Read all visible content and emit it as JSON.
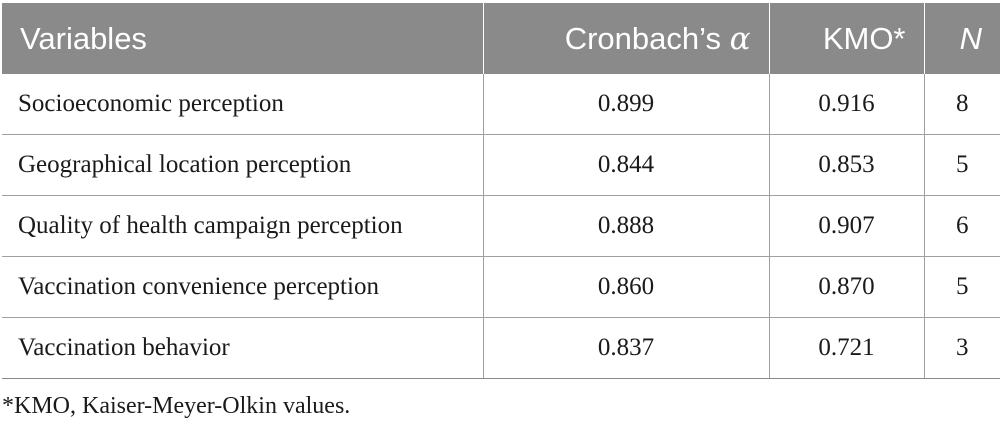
{
  "table": {
    "headers": {
      "variables": "Variables",
      "cronbach_prefix": "Cronbach’s ",
      "cronbach_symbol": "α",
      "kmo": "KMO*",
      "n": "N"
    },
    "rows": [
      {
        "variable": "Socioeconomic perception",
        "cronbach": "0.899",
        "kmo": "0.916",
        "n": "8"
      },
      {
        "variable": "Geographical location perception",
        "cronbach": "0.844",
        "kmo": "0.853",
        "n": "5"
      },
      {
        "variable": "Quality of health campaign perception",
        "cronbach": "0.888",
        "kmo": "0.907",
        "n": "6"
      },
      {
        "variable": "Vaccination convenience perception",
        "cronbach": "0.860",
        "kmo": "0.870",
        "n": "5"
      },
      {
        "variable": "Vaccination behavior",
        "cronbach": "0.837",
        "kmo": "0.721",
        "n": "3"
      }
    ]
  },
  "footnote": "*KMO, Kaiser-Meyer-Olkin values.",
  "colors": {
    "header_bg": "#8a8a8a",
    "header_text": "#ffffff",
    "rule": "#a0a0a0"
  }
}
